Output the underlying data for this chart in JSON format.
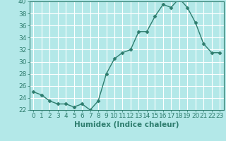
{
  "title": "",
  "xlabel": "Humidex (Indice chaleur)",
  "ylabel": "",
  "x": [
    0,
    1,
    2,
    3,
    4,
    5,
    6,
    7,
    8,
    9,
    10,
    11,
    12,
    13,
    14,
    15,
    16,
    17,
    18,
    19,
    20,
    21,
    22,
    23
  ],
  "y": [
    25.0,
    24.5,
    23.5,
    23.0,
    23.0,
    22.5,
    23.0,
    22.0,
    23.5,
    28.0,
    30.5,
    31.5,
    32.0,
    35.0,
    35.0,
    37.5,
    39.5,
    39.0,
    40.5,
    39.0,
    36.5,
    33.0,
    31.5,
    31.5
  ],
  "ylim": [
    22,
    40
  ],
  "yticks": [
    22,
    24,
    26,
    28,
    30,
    32,
    34,
    36,
    38,
    40
  ],
  "line_color": "#2e7d6e",
  "marker": "D",
  "marker_size": 2.5,
  "bg_color": "#b3e8e8",
  "grid_color": "#ffffff",
  "tick_label_fontsize": 6.5,
  "xlabel_fontsize": 7.5,
  "spine_color": "#2e7d6e"
}
